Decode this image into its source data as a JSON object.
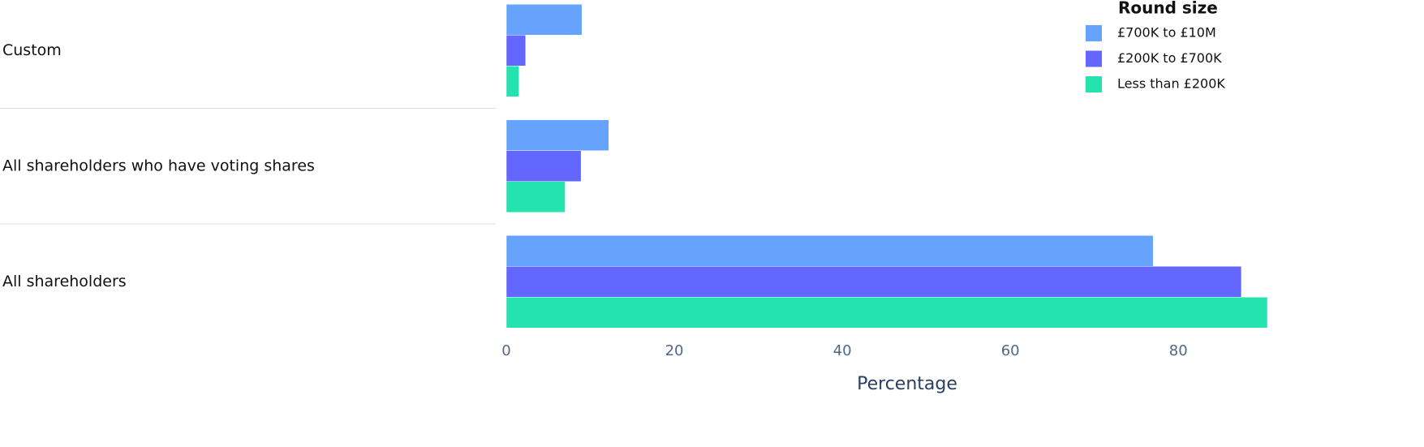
{
  "chart_data": {
    "type": "bar",
    "orientation": "horizontal",
    "categories": [
      "Custom",
      "All shareholders who have voting shares",
      "All shareholders"
    ],
    "series": [
      {
        "name": "£700K to £10M",
        "color": "#66a3ff",
        "values": [
          9.0,
          12.2,
          77.0
        ]
      },
      {
        "name": "£200K to £700K",
        "color": "#6366ff",
        "values": [
          2.3,
          8.9,
          87.5
        ]
      },
      {
        "name": "Less than £200K",
        "color": "#24e3ae",
        "values": [
          1.5,
          7.0,
          90.6
        ]
      }
    ],
    "xlabel": "Percentage",
    "xlim": [
      0,
      90.6
    ],
    "xticks": [
      0,
      20,
      40,
      60,
      80
    ],
    "legend_title": "Round size",
    "legend_position": "top-right"
  }
}
